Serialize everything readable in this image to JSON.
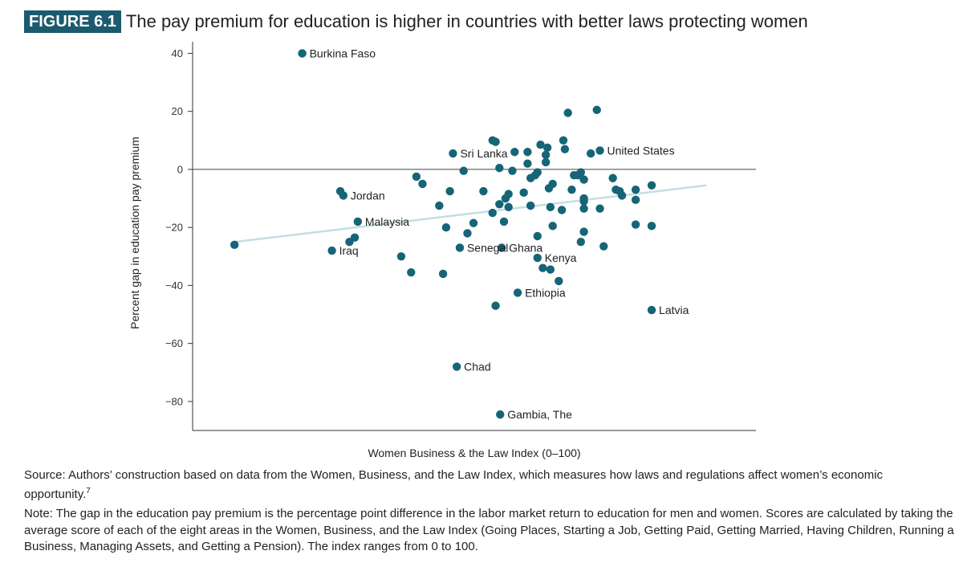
{
  "figure": {
    "tag": "FIGURE 6.1",
    "title": "The pay premium for education is higher in countries with better laws protecting women"
  },
  "source": {
    "text": "Source: Authors’ construction based on data from the Women, Business, and the Law Index, which measures how laws and regulations affect women’s economic opportunity.",
    "footnote": "7"
  },
  "note": "Note: The gap in the education pay premium is the percentage point difference in the labor market return to education for men and women. Scores are calculated by taking the average score of each of the eight areas in the Women, Business, and the Law Index (Going Places, Starting a Job, Getting Paid, Getting Married, Having Children, Running a Business, Managing Assets, and Getting a Pension). The index ranges from 0 to 100.",
  "colors": {
    "point": "#156577",
    "trend": "#c5dde3",
    "axis": "#333333",
    "tag_bg": "#1b5b6e"
  },
  "chart_data": {
    "type": "scatter",
    "xlabel": "Women Business & the Law Index (0–100)",
    "ylabel": "Percent gap in education pay premium",
    "xlim": [
      26,
      100
    ],
    "ylim": [
      -90,
      44
    ],
    "yticks": [
      40,
      20,
      0,
      -20,
      -40,
      -60,
      -80
    ],
    "ytick_labels": [
      "40",
      "20",
      "0",
      "−20",
      "−40",
      "−60",
      "−80"
    ],
    "grid": false,
    "zero_line": true,
    "trendline": [
      [
        31.5,
        -25
      ],
      [
        93.5,
        -5.5
      ]
    ],
    "points": [
      {
        "x": 31.5,
        "y": -26
      },
      {
        "x": 44.3,
        "y": -28,
        "label": "Iraq"
      },
      {
        "x": 45.4,
        "y": -7.5
      },
      {
        "x": 45.8,
        "y": -9,
        "label": "Jordan"
      },
      {
        "x": 46.6,
        "y": -25
      },
      {
        "x": 47.3,
        "y": -23.5
      },
      {
        "x": 47.7,
        "y": -18,
        "label": "Malaysia"
      },
      {
        "x": 53.4,
        "y": -30
      },
      {
        "x": 54.7,
        "y": -35.5
      },
      {
        "x": 55.4,
        "y": -2.5
      },
      {
        "x": 56.2,
        "y": -5
      },
      {
        "x": 58.4,
        "y": -12.5
      },
      {
        "x": 58.9,
        "y": -36
      },
      {
        "x": 59.3,
        "y": -20
      },
      {
        "x": 59.8,
        "y": -7.5
      },
      {
        "x": 60.2,
        "y": 5.5,
        "label": "Sri Lanka"
      },
      {
        "x": 60.7,
        "y": -68,
        "label": "Chad"
      },
      {
        "x": 61.1,
        "y": -27,
        "label": "Senegal"
      },
      {
        "x": 61.6,
        "y": -0.5
      },
      {
        "x": 62.1,
        "y": -22
      },
      {
        "x": 62.9,
        "y": -18.5
      },
      {
        "x": 64.2,
        "y": -7.5
      },
      {
        "x": 65.4,
        "y": 10
      },
      {
        "x": 65.4,
        "y": -15
      },
      {
        "x": 65.8,
        "y": 9.5
      },
      {
        "x": 65.8,
        "y": -47
      },
      {
        "x": 66.3,
        "y": 0.5
      },
      {
        "x": 66.4,
        "y": -84.5,
        "label": "Gambia, The"
      },
      {
        "x": 66.6,
        "y": -27,
        "label": "Ghana"
      },
      {
        "x": 66.3,
        "y": -12
      },
      {
        "x": 66.9,
        "y": -18
      },
      {
        "x": 67.1,
        "y": -10
      },
      {
        "x": 67.5,
        "y": -8.5
      },
      {
        "x": 67.5,
        "y": -13
      },
      {
        "x": 68.0,
        "y": -0.5
      },
      {
        "x": 68.3,
        "y": 6
      },
      {
        "x": 68.7,
        "y": -42.5,
        "label": "Ethiopia"
      },
      {
        "x": 69.5,
        "y": -8
      },
      {
        "x": 70.0,
        "y": 6
      },
      {
        "x": 70.0,
        "y": 2
      },
      {
        "x": 40.4,
        "y": 40,
        "label": "Burkina Faso"
      },
      {
        "x": 70.4,
        "y": -12.5
      },
      {
        "x": 70.4,
        "y": -3
      },
      {
        "x": 71.0,
        "y": -2
      },
      {
        "x": 71.3,
        "y": -1
      },
      {
        "x": 71.3,
        "y": -30.5,
        "label": "Kenya"
      },
      {
        "x": 71.3,
        "y": -23
      },
      {
        "x": 71.7,
        "y": 8.5
      },
      {
        "x": 72.0,
        "y": -34
      },
      {
        "x": 72.4,
        "y": 2.5
      },
      {
        "x": 72.4,
        "y": 5
      },
      {
        "x": 72.6,
        "y": 7.5
      },
      {
        "x": 72.8,
        "y": -6.5
      },
      {
        "x": 73.0,
        "y": -13
      },
      {
        "x": 73.0,
        "y": -34.5
      },
      {
        "x": 73.3,
        "y": -5
      },
      {
        "x": 73.3,
        "y": -19.5
      },
      {
        "x": 74.1,
        "y": -38.5
      },
      {
        "x": 74.5,
        "y": -14
      },
      {
        "x": 74.7,
        "y": 10
      },
      {
        "x": 74.9,
        "y": 7
      },
      {
        "x": 75.3,
        "y": 19.5
      },
      {
        "x": 75.8,
        "y": -7
      },
      {
        "x": 76.1,
        "y": -2
      },
      {
        "x": 76.6,
        "y": -2
      },
      {
        "x": 77.0,
        "y": -1
      },
      {
        "x": 77.0,
        "y": -25
      },
      {
        "x": 77.4,
        "y": -10
      },
      {
        "x": 77.4,
        "y": -3.5
      },
      {
        "x": 77.4,
        "y": -21.5
      },
      {
        "x": 77.4,
        "y": -11
      },
      {
        "x": 77.4,
        "y": -13.5
      },
      {
        "x": 78.3,
        "y": 5.5
      },
      {
        "x": 79.1,
        "y": 20.5
      },
      {
        "x": 79.5,
        "y": 6.5,
        "label": "United States"
      },
      {
        "x": 79.5,
        "y": -13.5
      },
      {
        "x": 80.0,
        "y": -26.5
      },
      {
        "x": 81.2,
        "y": -3
      },
      {
        "x": 81.6,
        "y": -7
      },
      {
        "x": 82.1,
        "y": -7.5
      },
      {
        "x": 82.4,
        "y": -9
      },
      {
        "x": 84.2,
        "y": -10.5
      },
      {
        "x": 84.2,
        "y": -7
      },
      {
        "x": 84.2,
        "y": -19
      },
      {
        "x": 86.3,
        "y": -5.5
      },
      {
        "x": 86.3,
        "y": -19.5
      },
      {
        "x": 86.3,
        "y": -48.5,
        "label": "Latvia"
      }
    ]
  }
}
